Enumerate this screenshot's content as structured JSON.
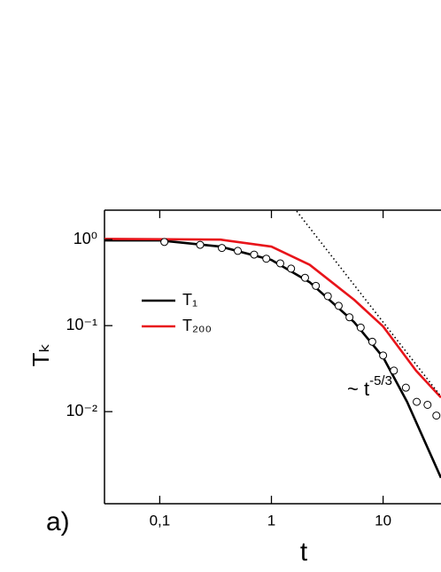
{
  "chart_data": {
    "type": "line",
    "xscale": "log",
    "yscale": "log",
    "x_label": "t",
    "y_label": "Tₖ",
    "panel_label": "a)",
    "annotation": {
      "text": "~ t",
      "superscript": "-5/3"
    },
    "xlim": [
      0.032,
      33
    ],
    "ylim": [
      0.00085,
      2.2
    ],
    "xticks": [
      {
        "value": 0.1,
        "label": "0,1"
      },
      1,
      10
    ],
    "yticks": [
      {
        "value": 1,
        "label": "10⁰"
      },
      {
        "value": 0.1,
        "label": "10⁻¹"
      },
      {
        "value": 0.01,
        "label": "10⁻²"
      }
    ],
    "legend": "upper left",
    "series": [
      {
        "name": "T₁",
        "color": "#000000",
        "style": "solid",
        "x": [
          0.032,
          0.1,
          0.35,
          1,
          2.2,
          5.5,
          10,
          16.4,
          33
        ],
        "values": [
          0.98,
          0.98,
          0.83,
          0.58,
          0.32,
          0.11,
          0.043,
          0.013,
          0.0017
        ]
      },
      {
        "name": "T₂₀₀",
        "color": "#e8141a",
        "style": "solid",
        "x": [
          0.032,
          0.35,
          1,
          2.2,
          5.5,
          10,
          19.7,
          33
        ],
        "values": [
          1.02,
          1.0,
          0.83,
          0.51,
          0.2,
          0.098,
          0.03,
          0.0146
        ]
      },
      {
        "color": "#000000",
        "style": "dotted",
        "x": [
          1.6,
          33
        ],
        "values": [
          2.33,
          0.015
        ]
      },
      {
        "color": "#000000",
        "style": "markers",
        "x": [
          0.11,
          0.23,
          0.36,
          0.5,
          0.7,
          0.9,
          1.2,
          1.5,
          2,
          2.5,
          3.2,
          4,
          5,
          6.3,
          8,
          10,
          12.5,
          16,
          20,
          25,
          30
        ],
        "values": [
          0.94,
          0.87,
          0.8,
          0.74,
          0.67,
          0.6,
          0.53,
          0.46,
          0.36,
          0.29,
          0.22,
          0.17,
          0.125,
          0.095,
          0.065,
          0.045,
          0.03,
          0.019,
          0.013,
          0.012,
          0.009
        ]
      }
    ]
  }
}
